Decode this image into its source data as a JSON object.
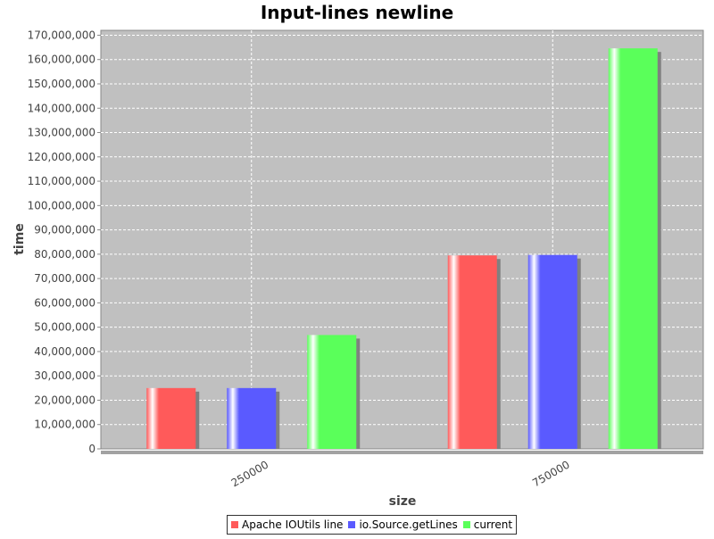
{
  "chart_data": {
    "type": "bar",
    "title": "Input-lines newline",
    "xlabel": "size",
    "ylabel": "time",
    "categories": [
      "250000",
      "750000"
    ],
    "series": [
      {
        "name": "Apache IOUtils line",
        "values": [
          25000000,
          79500000
        ],
        "color": "#ff5a5a"
      },
      {
        "name": "io.Source.getLines",
        "values": [
          25000000,
          79700000
        ],
        "color": "#5a5aff"
      },
      {
        "name": "current",
        "values": [
          46800000,
          164600000
        ],
        "color": "#5aff5a"
      }
    ],
    "ylim": [
      0,
      172000000
    ],
    "yticks": [
      0,
      10000000,
      20000000,
      30000000,
      40000000,
      50000000,
      60000000,
      70000000,
      80000000,
      90000000,
      100000000,
      110000000,
      120000000,
      130000000,
      140000000,
      150000000,
      160000000,
      170000000
    ],
    "ytick_labels": [
      "0",
      "10,000,000",
      "20,000,000",
      "30,000,000",
      "40,000,000",
      "50,000,000",
      "60,000,000",
      "70,000,000",
      "80,000,000",
      "90,000,000",
      "100,000,000",
      "110,000,000",
      "120,000,000",
      "130,000,000",
      "140,000,000",
      "150,000,000",
      "160,000,000",
      "170,000,000"
    ],
    "grid": true,
    "legend_position": "bottom",
    "plot_background": "#c0c0c0"
  }
}
